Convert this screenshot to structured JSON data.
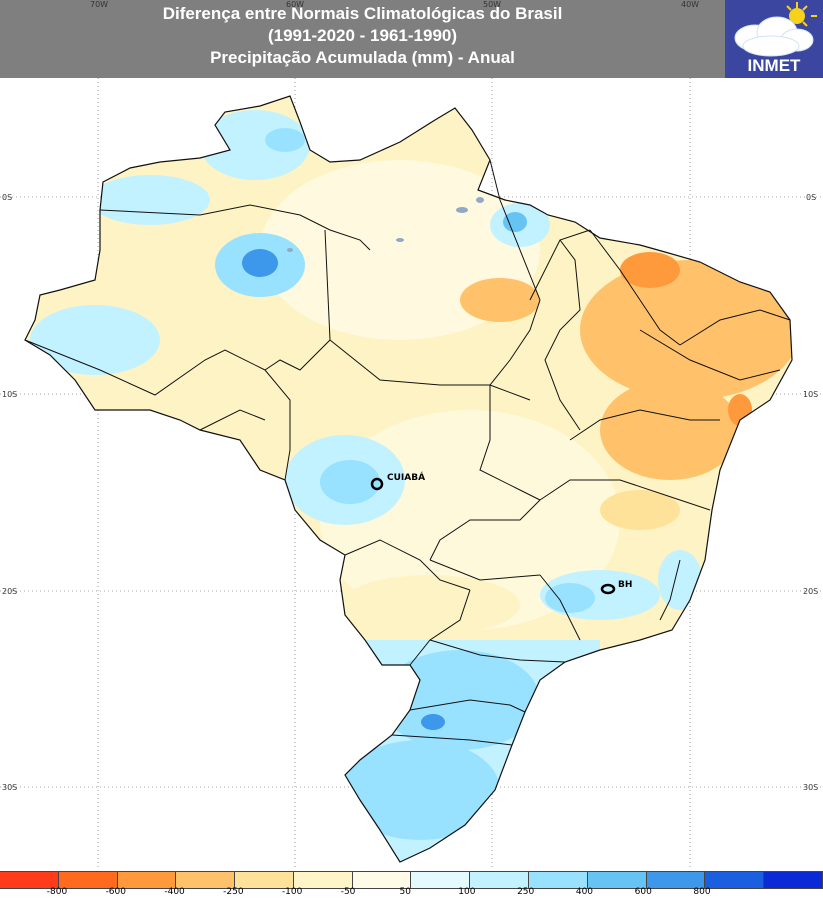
{
  "header": {
    "title_line1": "Diferença entre Normais Climatológicas do Brasil",
    "title_line2": "(1991-2020 - 1961-1990)",
    "title_line3": "Precipitação Acumulada (mm) - Anual"
  },
  "logo": {
    "text": "INMET",
    "icon": "cloud-sun-icon"
  },
  "grid": {
    "longitudes": [
      "70W",
      "60W",
      "50W",
      "40W"
    ],
    "latitudes": [
      "0S",
      "10S",
      "20S",
      "30S"
    ]
  },
  "cities": [
    {
      "name": "CUIABÁ"
    },
    {
      "name": "BH"
    }
  ],
  "legend": {
    "colors": [
      "#ff3b1a",
      "#ff6a1f",
      "#ff9a3c",
      "#ffc26a",
      "#ffe29a",
      "#fff5c8",
      "#fffbe6",
      "#e3fbff",
      "#c2f2ff",
      "#99e2ff",
      "#66c4f5",
      "#3d97ea",
      "#1a5fe0",
      "#0a2ad8"
    ],
    "labels": [
      "-800",
      "-600",
      "-400",
      "-250",
      "-100",
      "-50",
      "50",
      "100",
      "250",
      "400",
      "600",
      "800"
    ]
  },
  "colors": {
    "header_bg": "#7f7f7f",
    "logo_bg": "#3b46a0",
    "land_base": "#fdf3c4",
    "ocean": "#ffffff"
  }
}
